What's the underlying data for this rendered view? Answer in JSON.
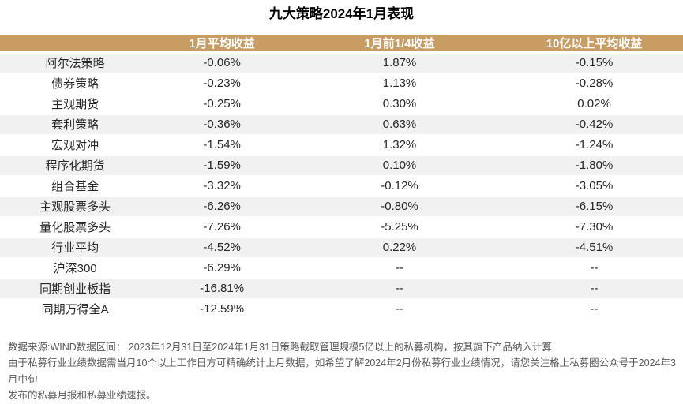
{
  "title": "九大策略2024年1月表现",
  "table": {
    "columns": [
      "",
      "1月平均收益",
      "1月前1/4收益",
      "10亿以上平均收益"
    ],
    "rows": [
      {
        "name": "阿尔法策略",
        "values": [
          "-0.06%",
          "1.87%",
          "-0.15%"
        ]
      },
      {
        "name": "债券策略",
        "values": [
          "-0.23%",
          "1.13%",
          "-0.28%"
        ]
      },
      {
        "name": "主观期货",
        "values": [
          "-0.25%",
          "0.30%",
          "0.02%"
        ]
      },
      {
        "name": "套利策略",
        "values": [
          "-0.36%",
          "0.63%",
          "-0.42%"
        ]
      },
      {
        "name": "宏观对冲",
        "values": [
          "-1.54%",
          "1.32%",
          "-1.24%"
        ]
      },
      {
        "name": "程序化期货",
        "values": [
          "-1.59%",
          "0.10%",
          "-1.80%"
        ]
      },
      {
        "name": "组合基金",
        "values": [
          "-3.32%",
          "-0.12%",
          "-3.05%"
        ]
      },
      {
        "name": "主观股票多头",
        "values": [
          "-6.26%",
          "-0.80%",
          "-6.15%"
        ]
      },
      {
        "name": "量化股票多头",
        "values": [
          "-7.26%",
          "-5.25%",
          "-7.30%"
        ]
      },
      {
        "name": "行业平均",
        "values": [
          "-4.52%",
          "0.22%",
          "-4.51%"
        ]
      },
      {
        "name": "沪深300",
        "values": [
          "-6.29%",
          "--",
          "--"
        ]
      },
      {
        "name": "同期创业板指",
        "values": [
          "-16.81%",
          "--",
          "--"
        ]
      },
      {
        "name": "同期万得全A",
        "values": [
          "-12.59%",
          "--",
          "--"
        ]
      }
    ]
  },
  "footnotes": [
    "数据来源:WIND数据区间： 2023年12月31日至2024年1月31日策略截取管理规模5亿以上的私募机构，按其旗下产品纳入计算",
    "由于私募行业业绩数据需当月10个以上工作日方可精确统计上月数据，如希望了解2024年2月份私募行业业绩情况，请您关注格上私募圈公众号于2024年3月中旬",
    "发布的私募月报和私募业绩速报。"
  ],
  "colors": {
    "header_bg": "#C89C63",
    "header_text": "#FFFFFF",
    "row_alt_bg": "#F1F1F1",
    "body_text": "#262626",
    "footnote_text": "#595959"
  }
}
